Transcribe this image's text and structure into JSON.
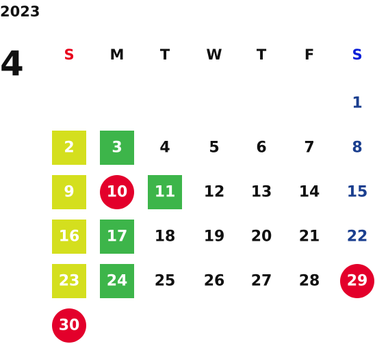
{
  "header": {
    "year": "2023",
    "month": "4"
  },
  "weekdays": [
    {
      "label": "S",
      "color": "#e8001c"
    },
    {
      "label": "M",
      "color": "#111111"
    },
    {
      "label": "T",
      "color": "#111111"
    },
    {
      "label": "W",
      "color": "#111111"
    },
    {
      "label": "T",
      "color": "#111111"
    },
    {
      "label": "F",
      "color": "#111111"
    },
    {
      "label": "S",
      "color": "#0a1fd8"
    }
  ],
  "day_colors": [
    "#111111",
    "#111111",
    "#111111",
    "#111111",
    "#111111",
    "#111111",
    "#1b3f8f"
  ],
  "highlight_text_color": "#ffffff",
  "weeks": [
    [
      null,
      null,
      null,
      null,
      null,
      null,
      1
    ],
    [
      {
        "day": 2,
        "bg": "#d4df1e",
        "shape": "square"
      },
      {
        "day": 3,
        "bg": "#3db54a",
        "shape": "square"
      },
      4,
      5,
      6,
      7,
      8
    ],
    [
      {
        "day": 9,
        "bg": "#d4df1e",
        "shape": "square"
      },
      {
        "day": 10,
        "bg": "#e3002b",
        "shape": "circle"
      },
      {
        "day": 11,
        "bg": "#3db54a",
        "shape": "square"
      },
      12,
      13,
      14,
      15
    ],
    [
      {
        "day": 16,
        "bg": "#d4df1e",
        "shape": "square"
      },
      {
        "day": 17,
        "bg": "#3db54a",
        "shape": "square"
      },
      18,
      19,
      20,
      21,
      22
    ],
    [
      {
        "day": 23,
        "bg": "#d4df1e",
        "shape": "square"
      },
      {
        "day": 24,
        "bg": "#3db54a",
        "shape": "square"
      },
      25,
      26,
      27,
      28,
      {
        "day": 29,
        "bg": "#e3002b",
        "shape": "circle"
      }
    ],
    [
      {
        "day": 30,
        "bg": "#e3002b",
        "shape": "circle"
      },
      null,
      null,
      null,
      null,
      null,
      null
    ]
  ]
}
